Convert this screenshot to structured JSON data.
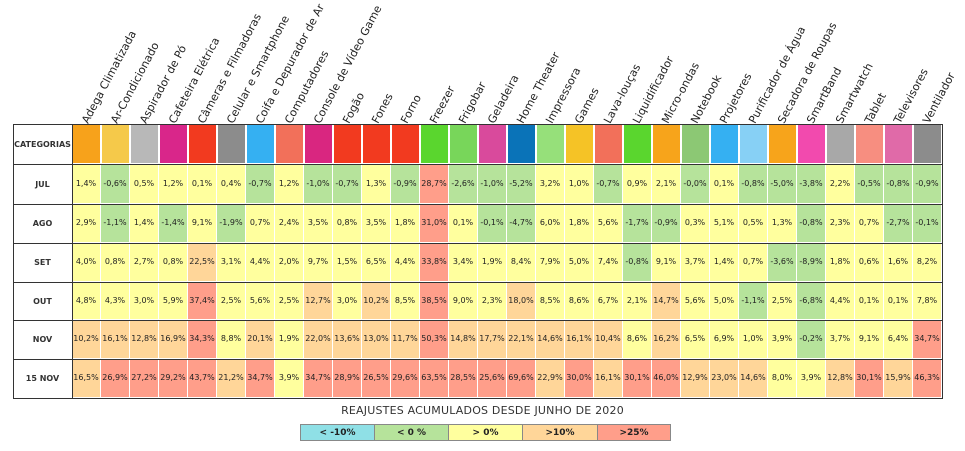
{
  "chart_data": {
    "type": "heatmap",
    "corner_label": "CATEGORIAS",
    "categories": [
      "Adega Climatizada",
      "Ar-Condicionado",
      "Aspirador de Pó",
      "Cafeteira Elétrica",
      "Câmeras e Filmadoras",
      "Celular e Smartphone",
      "Coifa e Depurador de Ar",
      "Computadores",
      "Console de Vídeo Game",
      "Fogão",
      "Fones",
      "Forno",
      "Freezer",
      "Frigobar",
      "Geladeira",
      "Home Theater",
      "Impressora",
      "Games",
      "Lava-louças",
      "Liquidificador",
      "Micro-ondas",
      "Notebook",
      "Projetores",
      "Purificador de Água",
      "Secadora de Roupas",
      "SmartBand",
      "Smartwatch",
      "Tablet",
      "Televisores",
      "Ventilador"
    ],
    "category_colors": [
      "#f7a21b",
      "#f5c94a",
      "#b8b8b8",
      "#d9268a",
      "#f23a1f",
      "#8c8c8c",
      "#35b0f2",
      "#f2705a",
      "#d92680",
      "#f23a1f",
      "#f23a1f",
      "#f23a1f",
      "#5ad62e",
      "#78d65a",
      "#d94a9c",
      "#0a73b8",
      "#96e07a",
      "#f5c326",
      "#f2705a",
      "#5ad62e",
      "#f7a41b",
      "#8cc874",
      "#35b0f2",
      "#87d0f5",
      "#f7a41b",
      "#f24aae",
      "#a8a8a8",
      "#f78e80",
      "#e06aa8",
      "#8c8c8c"
    ],
    "rows": [
      "JUL",
      "AGO",
      "SET",
      "OUT",
      "NOV",
      "15 NOV"
    ],
    "values": [
      [
        "1,4%",
        "-0,6%",
        "0,5%",
        "1,2%",
        "0,1%",
        "0,4%",
        "-0,7%",
        "1,2%",
        "-1,0%",
        "-0,7%",
        "1,3%",
        "-0,9%",
        "28,7%",
        "-2,6%",
        "-1,0%",
        "-5,2%",
        "3,2%",
        "1,0%",
        "-0,7%",
        "0,9%",
        "2,1%",
        "-0,0%",
        "0,1%",
        "-0,8%",
        "-5,0%",
        "-3,8%",
        "2,2%",
        "-0,5%",
        "-0,8%",
        "-0,9%"
      ],
      [
        "2,9%",
        "-1,1%",
        "1,4%",
        "-1,4%",
        "9,1%",
        "-1,9%",
        "0,7%",
        "2,4%",
        "3,5%",
        "0,8%",
        "3,5%",
        "1,8%",
        "31,0%",
        "0,1%",
        "-0,1%",
        "-4,7%",
        "6,0%",
        "1,8%",
        "5,6%",
        "-1,7%",
        "-0,9%",
        "0,3%",
        "5,1%",
        "0,5%",
        "1,3%",
        "-0,8%",
        "2,3%",
        "0,7%",
        "-2,7%",
        "-0,1%"
      ],
      [
        "4,0%",
        "0,8%",
        "2,7%",
        "0,8%",
        "22,5%",
        "3,1%",
        "4,4%",
        "2,0%",
        "9,7%",
        "1,5%",
        "6,5%",
        "4,4%",
        "33,8%",
        "3,4%",
        "1,9%",
        "8,4%",
        "7,9%",
        "5,0%",
        "7,4%",
        "-0,8%",
        "9,1%",
        "3,7%",
        "1,4%",
        "0,7%",
        "-3,6%",
        "-8,9%",
        "1,8%",
        "0,6%",
        "1,6%",
        "8,2%"
      ],
      [
        "4,8%",
        "4,3%",
        "3,0%",
        "5,9%",
        "37,4%",
        "2,5%",
        "5,6%",
        "2,5%",
        "12,7%",
        "3,0%",
        "10,2%",
        "8,5%",
        "38,5%",
        "9,0%",
        "2,3%",
        "18,0%",
        "8,5%",
        "8,6%",
        "6,7%",
        "2,1%",
        "14,7%",
        "5,6%",
        "5,0%",
        "-1,1%",
        "2,5%",
        "-6,8%",
        "4,4%",
        "0,1%",
        "0,1%",
        "7,8%"
      ],
      [
        "10,2%",
        "16,1%",
        "12,8%",
        "16,9%",
        "34,3%",
        "8,8%",
        "20,1%",
        "1,9%",
        "22,0%",
        "13,6%",
        "13,0%",
        "11,7%",
        "50,3%",
        "14,8%",
        "17,7%",
        "22,1%",
        "14,6%",
        "16,1%",
        "10,4%",
        "8,6%",
        "16,2%",
        "6,5%",
        "6,9%",
        "1,0%",
        "3,9%",
        "-0,2%",
        "3,7%",
        "9,1%",
        "6,4%",
        "34,7%"
      ],
      [
        "16,5%",
        "26,9%",
        "27,2%",
        "29,2%",
        "43,7%",
        "21,2%",
        "34,7%",
        "3,9%",
        "34,7%",
        "28,9%",
        "26,5%",
        "29,6%",
        "63,5%",
        "28,5%",
        "25,6%",
        "69,6%",
        "22,9%",
        "30,0%",
        "16,1%",
        "30,1%",
        "46,0%",
        "12,9%",
        "23,0%",
        "14,6%",
        "8,0%",
        "3,9%",
        "12,8%",
        "30,1%",
        "15,9%",
        "46,3%"
      ]
    ],
    "scale_colors": {
      "lt_minus10": "#8fe0e6",
      "lt_0": "#b6e39b",
      "gt_0": "#ffff9e",
      "gt_10": "#ffd699",
      "gt_25": "#ff9e8a"
    }
  },
  "caption": "REAJUSTES ACUMULADOS DESDE JUNHO DE 2020",
  "legend": [
    {
      "label": "< -10%",
      "color": "#8fe0e6"
    },
    {
      "label": "< 0 %",
      "color": "#b6e39b"
    },
    {
      "label": "> 0%",
      "color": "#ffff9e"
    },
    {
      "label": ">10%",
      "color": "#ffd699"
    },
    {
      "label": ">25%",
      "color": "#ff9e8a"
    }
  ]
}
